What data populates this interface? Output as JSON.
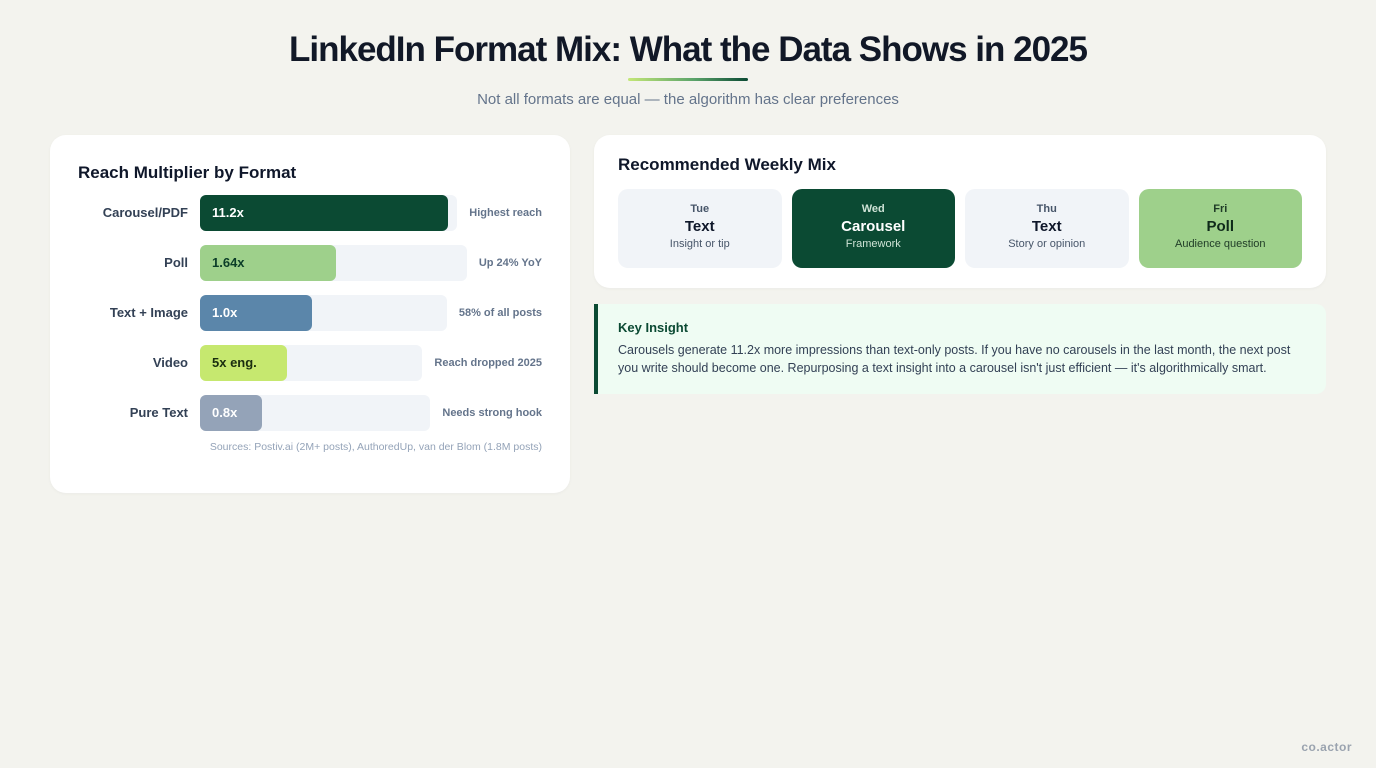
{
  "header": {
    "title": "LinkedIn Format Mix: What the Data Shows in 2025",
    "subtitle": "Not all formats are equal — the algorithm has clear preferences"
  },
  "reach_card": {
    "title": "Reach Multiplier by Format",
    "sources": "Sources: Postiv.ai (2M+ posts), AuthoredUp, van der Blom (1.8M posts)"
  },
  "chart_data": {
    "type": "bar",
    "orientation": "horizontal",
    "title": "Reach Multiplier by Format",
    "categories": [
      "Carousel/PDF",
      "Poll",
      "Text + Image",
      "Video",
      "Pure Text"
    ],
    "values": [
      11.2,
      1.64,
      1.0,
      5,
      0.8
    ],
    "value_labels": [
      "11.2x",
      "1.64x",
      "1.0x",
      "5x eng.",
      "0.8x"
    ],
    "annotations": [
      "Highest reach",
      "Up 24% YoY",
      "58% of all posts",
      "Reach dropped 2025",
      "Needs strong hook"
    ],
    "bar_fill_fraction": [
      1.0,
      0.55,
      0.45,
      0.35,
      0.25
    ],
    "colors": [
      "#0b4a33",
      "#9ed08b",
      "#5b86aa",
      "#c6e86f",
      "#94a3b8"
    ],
    "label_colors": [
      "#ffffff",
      "#0b3d28",
      "#ffffff",
      "#1a2e0f",
      "#ffffff"
    ],
    "grid": false,
    "legend": "none"
  },
  "weekly_mix": {
    "title": "Recommended Weekly Mix",
    "days": [
      {
        "day": "Tue",
        "format": "Text",
        "desc": "Insight or tip",
        "bg": "#f1f4f8",
        "fg": "#0f172a",
        "sub": "#475569"
      },
      {
        "day": "Wed",
        "format": "Carousel",
        "desc": "Framework",
        "bg": "#0b4a33",
        "fg": "#ffffff",
        "sub": "#cfe3d6"
      },
      {
        "day": "Thu",
        "format": "Text",
        "desc": "Story or opinion",
        "bg": "#f1f4f8",
        "fg": "#0f172a",
        "sub": "#475569"
      },
      {
        "day": "Fri",
        "format": "Poll",
        "desc": "Audience question",
        "bg": "#9ed08b",
        "fg": "#0f2a1a",
        "sub": "#1f3b26"
      }
    ]
  },
  "insight": {
    "title": "Key Insight",
    "text": "Carousels generate 11.2x more impressions than text-only posts. If you have no carousels in the last month, the next post you write should become one. Repurposing a text insight into a carousel isn't just efficient — it's algorithmically smart."
  },
  "brand": "co.actor"
}
